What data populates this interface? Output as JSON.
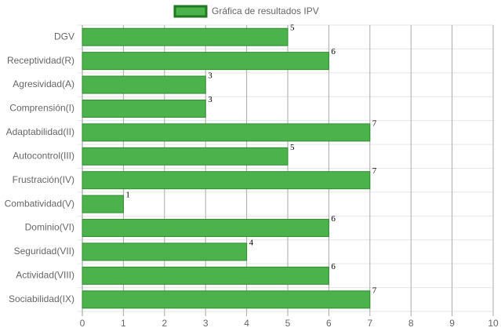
{
  "chart_data": {
    "type": "bar",
    "orientation": "horizontal",
    "legend": "Gráfica de resultados IPV",
    "color": "#4cb34c",
    "border_color": "#2e8b2e",
    "categories": [
      "DGV",
      "Receptividad(R)",
      "Agresividad(A)",
      "Comprensión(I)",
      "Adaptabilidad(II)",
      "Autocontrol(III)",
      "Frustración(IV)",
      "Combatividad(V)",
      "Dominio(VI)",
      "Seguridad(VII)",
      "Actividad(VIII)",
      "Sociabilidad(IX)"
    ],
    "values": [
      5,
      6,
      3,
      3,
      7,
      5,
      7,
      1,
      6,
      4,
      6,
      7
    ],
    "xlim": [
      0,
      10
    ],
    "xticks": [
      0,
      1,
      2,
      3,
      4,
      5,
      6,
      7,
      8,
      9,
      10
    ],
    "grid": true
  }
}
